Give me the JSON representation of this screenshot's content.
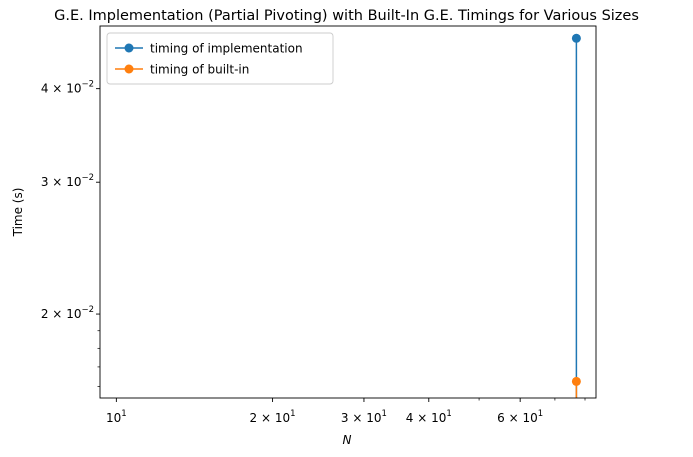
{
  "chart_data": {
    "type": "line",
    "title": "G.E. Implementation (Partial Pivoting) with Built-In G.E. Timings for Various Sizes",
    "xlabel": "N",
    "ylabel": "Time (s)",
    "xscale": "log",
    "yscale": "log",
    "xlim": [
      9.3,
      84
    ],
    "ylim": [
      0.01545,
      0.0485
    ],
    "grid": false,
    "legend_position": "top-left",
    "x_ticks": [
      {
        "value": 10,
        "mantissa": "",
        "exponent": "1",
        "label": "10^1"
      },
      {
        "value": 20,
        "mantissa": "2 × ",
        "exponent": "1",
        "label": "2 × 10^1"
      },
      {
        "value": 30,
        "mantissa": "3 × ",
        "exponent": "1",
        "label": "3 × 10^1"
      },
      {
        "value": 40,
        "mantissa": "4 × ",
        "exponent": "1",
        "label": "4 × 10^1"
      },
      {
        "value": 60,
        "mantissa": "6 × ",
        "exponent": "1",
        "label": "6 × 10^1"
      }
    ],
    "y_ticks": [
      {
        "value": 0.02,
        "mantissa": "2 × ",
        "exponent": "−2",
        "label": "2 × 10^−2"
      },
      {
        "value": 0.03,
        "mantissa": "3 × ",
        "exponent": "−2",
        "label": "3 × 10^−2"
      },
      {
        "value": 0.04,
        "mantissa": "4 × ",
        "exponent": "−2",
        "label": "4 × 10^−2"
      }
    ],
    "series": [
      {
        "name": "timing of implementation",
        "color": "#1f77b4",
        "points": [
          {
            "x": 77,
            "y": 0.0467
          },
          {
            "x": 77,
            "y": 0.015
          }
        ]
      },
      {
        "name": "timing of built-in",
        "color": "#ff7f0e",
        "points": [
          {
            "x": 77,
            "y": 0.01626
          },
          {
            "x": 77,
            "y": 0.015
          }
        ]
      }
    ]
  }
}
